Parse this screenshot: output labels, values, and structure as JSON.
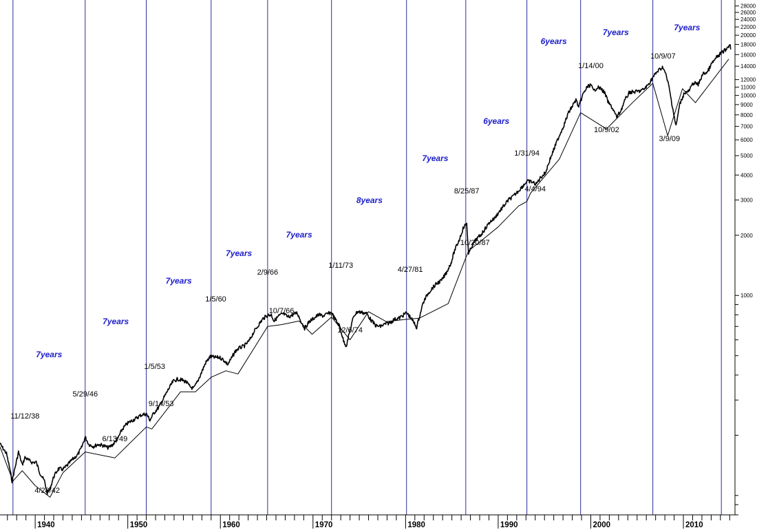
{
  "chart_data": {
    "type": "line",
    "title": "",
    "xlabel": "",
    "ylabel": "",
    "y_scale": "log",
    "xlim": [
      1936.2,
      2015.2
    ],
    "ylim": [
      80,
      30000
    ],
    "x_ticks": [
      "1940",
      "1950",
      "1960",
      "1970",
      "1980",
      "1990",
      "2000",
      "2010"
    ],
    "y_ticks": [
      "1000",
      "2000",
      "3000",
      "4000",
      "5000",
      "6000",
      "7000",
      "8000",
      "9000",
      "10000",
      "11000",
      "12000",
      "14000",
      "16000",
      "18000",
      "20000",
      "22000",
      "24000",
      "26000",
      "28000"
    ],
    "colors": {
      "cycle_line": "#2a2a9a",
      "cycle_label": "#1c1ccc",
      "price": "#000000"
    },
    "cycle_boundaries": [
      1937.6,
      1945.4,
      1952.0,
      1959.0,
      1965.1,
      1972.0,
      1980.1,
      1986.5,
      1993.1,
      1998.9,
      2006.7,
      2014.1
    ],
    "series": [
      {
        "values": [
          [
            1936.2,
            181
          ],
          [
            1936.6,
            170
          ],
          [
            1936.9,
            162
          ],
          [
            1937.2,
            140
          ],
          [
            1937.5,
            118
          ],
          [
            1937.8,
            136
          ],
          [
            1938.2,
            165
          ],
          [
            1938.6,
            142
          ],
          [
            1938.9,
            155
          ],
          [
            1939.3,
            150
          ],
          [
            1939.7,
            146
          ],
          [
            1940.1,
            147
          ],
          [
            1940.5,
            130
          ],
          [
            1941.0,
            118
          ],
          [
            1941.3,
            103
          ],
          [
            1941.6,
            108
          ],
          [
            1942.0,
            124
          ],
          [
            1942.5,
            136
          ],
          [
            1943.0,
            135
          ],
          [
            1943.5,
            142
          ],
          [
            1944.0,
            151
          ],
          [
            1944.6,
            160
          ],
          [
            1945.0,
            173
          ],
          [
            1945.4,
            196
          ],
          [
            1945.8,
            180
          ],
          [
            1946.3,
            176
          ],
          [
            1946.8,
            180
          ],
          [
            1947.3,
            178
          ],
          [
            1947.9,
            173
          ],
          [
            1948.4,
            180
          ],
          [
            1948.9,
            192
          ],
          [
            1949.4,
            214
          ],
          [
            1949.9,
            228
          ],
          [
            1950.4,
            236
          ],
          [
            1950.9,
            243
          ],
          [
            1951.4,
            252
          ],
          [
            1952.0,
            256
          ],
          [
            1952.4,
            238
          ],
          [
            1952.8,
            258
          ],
          [
            1953.4,
            278
          ],
          [
            1953.9,
            308
          ],
          [
            1954.4,
            340
          ],
          [
            1954.9,
            372
          ],
          [
            1955.4,
            382
          ],
          [
            1955.9,
            377
          ],
          [
            1956.3,
            370
          ],
          [
            1956.7,
            350
          ],
          [
            1957.1,
            342
          ],
          [
            1957.5,
            368
          ],
          [
            1957.9,
            406
          ],
          [
            1958.4,
            460
          ],
          [
            1958.9,
            494
          ],
          [
            1959.4,
            490
          ],
          [
            1959.9,
            490
          ],
          [
            1960.3,
            478
          ],
          [
            1960.8,
            452
          ],
          [
            1961.2,
            485
          ],
          [
            1961.6,
            525
          ],
          [
            1962.0,
            545
          ],
          [
            1962.6,
            560
          ],
          [
            1963.1,
            592
          ],
          [
            1963.6,
            655
          ],
          [
            1964.1,
            710
          ],
          [
            1964.6,
            765
          ],
          [
            1965.1,
            797
          ],
          [
            1965.5,
            800
          ],
          [
            1965.8,
            745
          ],
          [
            1966.3,
            790
          ],
          [
            1966.8,
            810
          ],
          [
            1967.3,
            780
          ],
          [
            1967.8,
            800
          ],
          [
            1968.3,
            820
          ],
          [
            1968.6,
            760
          ],
          [
            1968.8,
            728
          ],
          [
            1969.1,
            685
          ],
          [
            1969.6,
            740
          ],
          [
            1970.1,
            770
          ],
          [
            1970.6,
            800
          ],
          [
            1971.1,
            790
          ],
          [
            1971.6,
            810
          ],
          [
            1972.0,
            822
          ],
          [
            1972.4,
            760
          ],
          [
            1972.9,
            700
          ],
          [
            1973.3,
            592
          ],
          [
            1973.6,
            560
          ],
          [
            1973.9,
            640
          ],
          [
            1974.4,
            790
          ],
          [
            1974.8,
            830
          ],
          [
            1975.3,
            822
          ],
          [
            1975.8,
            812
          ],
          [
            1976.3,
            750
          ],
          [
            1976.8,
            705
          ],
          [
            1977.3,
            700
          ],
          [
            1977.8,
            720
          ],
          [
            1978.3,
            730
          ],
          [
            1978.8,
            760
          ],
          [
            1979.3,
            770
          ],
          [
            1979.8,
            800
          ],
          [
            1980.1,
            820
          ],
          [
            1980.5,
            780
          ],
          [
            1980.9,
            730
          ],
          [
            1981.2,
            692
          ],
          [
            1981.5,
            785
          ],
          [
            1981.9,
            920
          ],
          [
            1982.4,
            1020
          ],
          [
            1982.9,
            1090
          ],
          [
            1983.4,
            1150
          ],
          [
            1983.9,
            1190
          ],
          [
            1984.4,
            1300
          ],
          [
            1984.9,
            1450
          ],
          [
            1985.3,
            1680
          ],
          [
            1985.8,
            1900
          ],
          [
            1986.2,
            2160
          ],
          [
            1986.6,
            2300
          ],
          [
            1986.8,
            1600
          ],
          [
            1987.1,
            1750
          ],
          [
            1987.6,
            1900
          ],
          [
            1988.1,
            2000
          ],
          [
            1988.6,
            2160
          ],
          [
            1989.1,
            2330
          ],
          [
            1989.6,
            2430
          ],
          [
            1990.1,
            2620
          ],
          [
            1990.6,
            2800
          ],
          [
            1991.1,
            3000
          ],
          [
            1991.6,
            3120
          ],
          [
            1992.1,
            3300
          ],
          [
            1992.6,
            3500
          ],
          [
            1993.1,
            3720
          ],
          [
            1993.6,
            3700
          ],
          [
            1994.1,
            3600
          ],
          [
            1994.6,
            3900
          ],
          [
            1995.1,
            4100
          ],
          [
            1995.6,
            4800
          ],
          [
            1996.1,
            5500
          ],
          [
            1996.6,
            6300
          ],
          [
            1997.1,
            7100
          ],
          [
            1997.6,
            8200
          ],
          [
            1998.1,
            9000
          ],
          [
            1998.4,
            9500
          ],
          [
            1998.7,
            8700
          ],
          [
            1999.1,
            10000
          ],
          [
            1999.6,
            11000
          ],
          [
            2000.0,
            11300
          ],
          [
            2000.3,
            10500
          ],
          [
            2000.7,
            11000
          ],
          [
            2001.1,
            10800
          ],
          [
            2001.5,
            10300
          ],
          [
            2001.9,
            9200
          ],
          [
            2002.3,
            8700
          ],
          [
            2002.8,
            7800
          ],
          [
            2003.2,
            8300
          ],
          [
            2003.7,
            9500
          ],
          [
            2004.2,
            10400
          ],
          [
            2004.7,
            10400
          ],
          [
            2005.2,
            10500
          ],
          [
            2005.7,
            10700
          ],
          [
            2006.2,
            11300
          ],
          [
            2006.7,
            12300
          ],
          [
            2007.2,
            13200
          ],
          [
            2007.8,
            13900
          ],
          [
            2008.1,
            12700
          ],
          [
            2008.4,
            11300
          ],
          [
            2008.8,
            8900
          ],
          [
            2009.2,
            7000
          ],
          [
            2009.6,
            9000
          ],
          [
            2010.1,
            10300
          ],
          [
            2010.6,
            10500
          ],
          [
            2011.1,
            11600
          ],
          [
            2011.6,
            11300
          ],
          [
            2012.1,
            12800
          ],
          [
            2012.6,
            13100
          ],
          [
            2013.1,
            14500
          ],
          [
            2013.6,
            15500
          ],
          [
            2014.1,
            16300
          ],
          [
            2014.6,
            17000
          ],
          [
            2015.0,
            18000
          ],
          [
            2015.15,
            17100
          ]
        ]
      },
      {
        "values": [
          [
            1936.2,
            175
          ],
          [
            1937.6,
            118
          ],
          [
            1938.6,
            133
          ],
          [
            1940.0,
            112
          ],
          [
            1941.6,
            98
          ],
          [
            1943.0,
            130
          ],
          [
            1945.4,
            165
          ],
          [
            1948.6,
            154
          ],
          [
            1952.0,
            220
          ],
          [
            1952.6,
            215
          ],
          [
            1955.7,
            330
          ],
          [
            1957.3,
            330
          ],
          [
            1959.0,
            390
          ],
          [
            1960.6,
            420
          ],
          [
            1961.9,
            405
          ],
          [
            1965.1,
            700
          ],
          [
            1966.6,
            715
          ],
          [
            1968.5,
            745
          ],
          [
            1969.9,
            640
          ],
          [
            1972.0,
            780
          ],
          [
            1974.0,
            600
          ],
          [
            1976.0,
            830
          ],
          [
            1977.9,
            740
          ],
          [
            1980.1,
            760
          ],
          [
            1981.5,
            770
          ],
          [
            1984.6,
            910
          ],
          [
            1986.4,
            1500
          ],
          [
            1986.8,
            1670
          ],
          [
            1988.6,
            1950
          ],
          [
            1990.0,
            2200
          ],
          [
            1992.2,
            2800
          ],
          [
            1993.1,
            2950
          ],
          [
            1993.5,
            3250
          ],
          [
            1996.6,
            4800
          ],
          [
            1998.9,
            8200
          ],
          [
            2001.7,
            6800
          ],
          [
            2004.6,
            9300
          ],
          [
            2006.7,
            11500
          ],
          [
            2008.3,
            6300
          ],
          [
            2009.9,
            10800
          ],
          [
            2011.3,
            9200
          ],
          [
            2014.9,
            15200
          ]
        ]
      }
    ],
    "annotations": [
      {
        "text": "11/12/38",
        "x": 1938.9
      },
      {
        "text": "4/28/42",
        "x": 1941.3
      },
      {
        "text": "5/29/46",
        "x": 1945.4
      },
      {
        "text": "6/13/49",
        "x": 1948.6
      },
      {
        "text": "1/5/53",
        "x": 1952.9
      },
      {
        "text": "9/14/53",
        "x": 1953.6
      },
      {
        "text": "1/5/60",
        "x": 1959.5
      },
      {
        "text": "2/9/66",
        "x": 1965.1
      },
      {
        "text": "10/7/66",
        "x": 1966.6
      },
      {
        "text": "1/11/73",
        "x": 1973.0
      },
      {
        "text": "12/6/74",
        "x": 1974.0
      },
      {
        "text": "4/27/81",
        "x": 1980.5
      },
      {
        "text": "8/25/87",
        "x": 1986.6
      },
      {
        "text": "10/20/87",
        "x": 1987.5
      },
      {
        "text": "1/31/94",
        "x": 1993.1
      },
      {
        "text": "4/4/94",
        "x": 1994.0
      },
      {
        "text": "1/14/00",
        "x": 2000.0
      },
      {
        "text": "10/9/02",
        "x": 2001.7
      },
      {
        "text": "10/9/07",
        "x": 2007.8
      },
      {
        "text": "3/9/09",
        "x": 2008.5
      }
    ],
    "cycle_labels": [
      {
        "text": "7years",
        "x": 1941.5
      },
      {
        "text": "7years",
        "x": 1948.7
      },
      {
        "text": "7years",
        "x": 1955.5
      },
      {
        "text": "7years",
        "x": 1962.0
      },
      {
        "text": "7years",
        "x": 1968.5
      },
      {
        "text": "8years",
        "x": 1976.1
      },
      {
        "text": "7years",
        "x": 1983.2
      },
      {
        "text": "6years",
        "x": 1989.8
      },
      {
        "text": "6years",
        "x": 1996.0
      },
      {
        "text": "7years",
        "x": 2002.7
      },
      {
        "text": "7years",
        "x": 2010.4
      }
    ]
  }
}
